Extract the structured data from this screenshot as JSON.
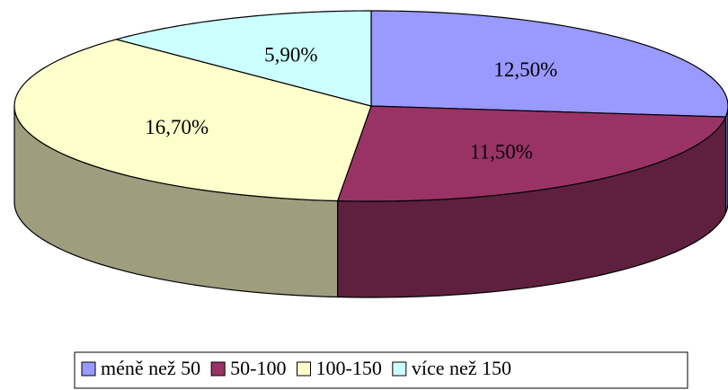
{
  "chart_data": {
    "type": "pie3d",
    "categories": [
      "méně než 50",
      "50-100",
      "100-150",
      "více než 150"
    ],
    "values": [
      12.5,
      11.5,
      16.7,
      5.9
    ],
    "value_labels": [
      "12,50%",
      "11,50%",
      "16,70%",
      "5,90%"
    ],
    "colors": [
      "#9999ff",
      "#993366",
      "#ffffcc",
      "#ccffff"
    ],
    "legend": "bottom"
  }
}
